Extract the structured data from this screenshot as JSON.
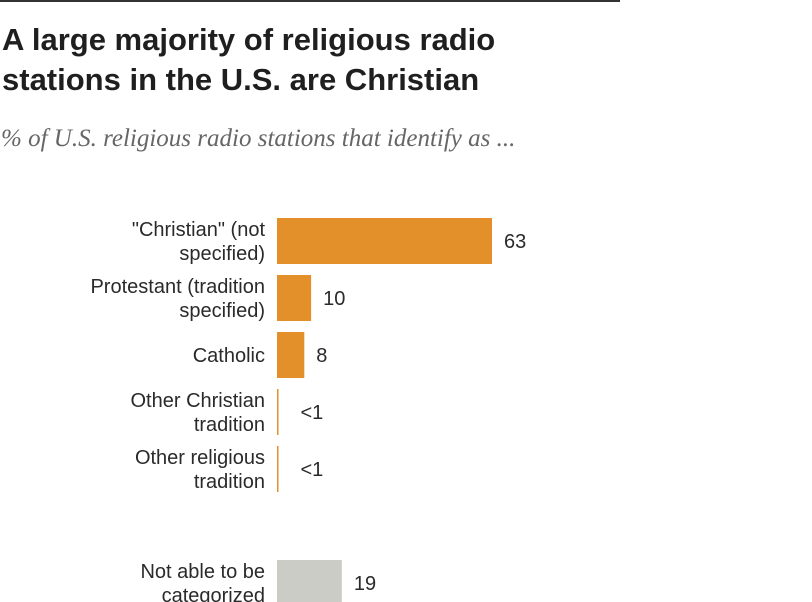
{
  "chart_data": {
    "type": "bar",
    "orientation": "horizontal",
    "title": "A large majority of religious radio stations in the U.S. are Christian",
    "subtitle": "% of U.S. religious radio stations that identify as ...",
    "categories": [
      [
        "\"Christian\" (not",
        "specified)"
      ],
      [
        "Protestant (tradition",
        "specified)"
      ],
      [
        "Catholic"
      ],
      [
        "Other Christian",
        "tradition"
      ],
      [
        "Other religious",
        "tradition"
      ],
      [
        "Not able to be",
        "categorized"
      ]
    ],
    "values": [
      63,
      10,
      8,
      0.3,
      0.3,
      19
    ],
    "value_labels": [
      "63",
      "10",
      "8",
      "<1",
      "<1",
      "19"
    ],
    "group": [
      "religion",
      "religion",
      "religion",
      "religion",
      "religion",
      "uncategorized"
    ],
    "colors": {
      "religion": "#E4902A",
      "uncategorized": "#CCCCC7"
    },
    "xlim": [
      0,
      63
    ],
    "grid": false,
    "legend": "none"
  }
}
